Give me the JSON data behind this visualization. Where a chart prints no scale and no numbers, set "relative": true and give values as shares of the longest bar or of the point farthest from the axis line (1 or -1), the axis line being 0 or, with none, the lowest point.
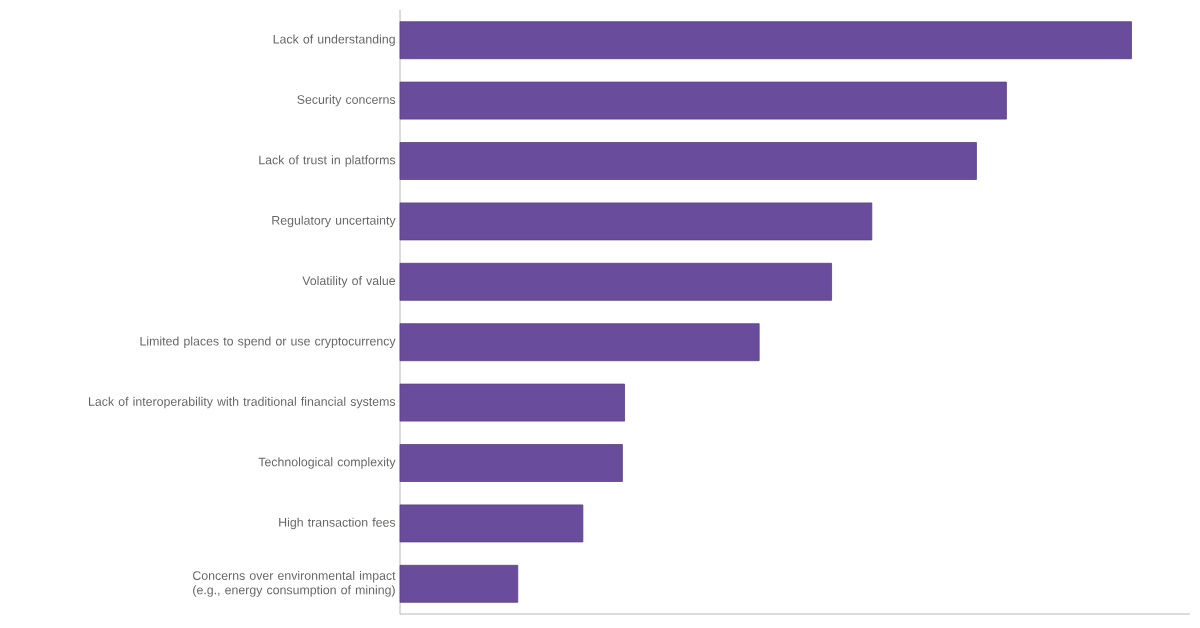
{
  "chart_data": {
    "type": "bar",
    "orientation": "horizontal",
    "relative": true,
    "color": "#6a4c9c",
    "categories": [
      "Lack of understanding",
      "Security concerns",
      "Lack of trust in platforms",
      "Regulatory uncertainty",
      "Volatility of value",
      "Limited places to spend or use cryptocurrency",
      "Lack of interoperability with traditional financial systems",
      "Technological complexity",
      "High transaction fees",
      "Concerns over environmental impact (e.g., energy consumption of mining)"
    ],
    "values": [
      1,
      0.829,
      0.788,
      0.645,
      0.59,
      0.491,
      0.307,
      0.304,
      0.25,
      0.161
    ]
  }
}
